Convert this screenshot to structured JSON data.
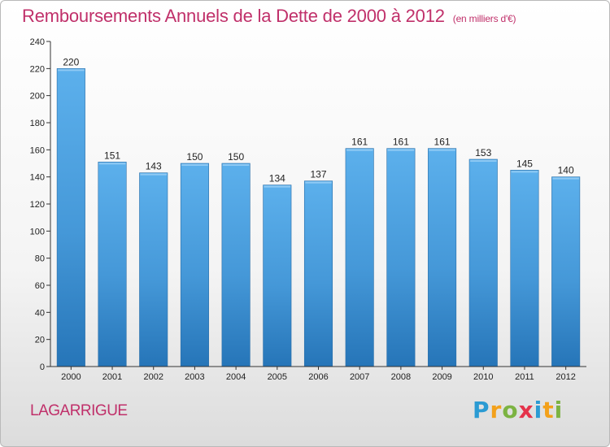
{
  "title": "Remboursements Annuels de la Dette de 2000 à 2012",
  "subtitle": "(en milliers d'€)",
  "commune": "LAGARRIGUE",
  "logo_text": "Proxiti",
  "colors": {
    "title": "#c0306a",
    "bar_light": "#5aaeea",
    "bar_dark": "#2a7fc2",
    "axis": "#333333"
  },
  "chart_data": {
    "type": "bar",
    "title": "Remboursements Annuels de la Dette de 2000 à 2012",
    "subtitle": "(en milliers d'€)",
    "categories": [
      "2000",
      "2001",
      "2002",
      "2003",
      "2004",
      "2005",
      "2006",
      "2007",
      "2008",
      "2009",
      "2010",
      "2011",
      "2012"
    ],
    "values": [
      220,
      151,
      143,
      150,
      150,
      134,
      137,
      161,
      161,
      161,
      153,
      145,
      140
    ],
    "ylim": [
      0,
      240
    ],
    "yticks": [
      0,
      20,
      40,
      60,
      80,
      100,
      120,
      140,
      160,
      180,
      200,
      220,
      240
    ],
    "grid": false,
    "data_labels": true
  }
}
